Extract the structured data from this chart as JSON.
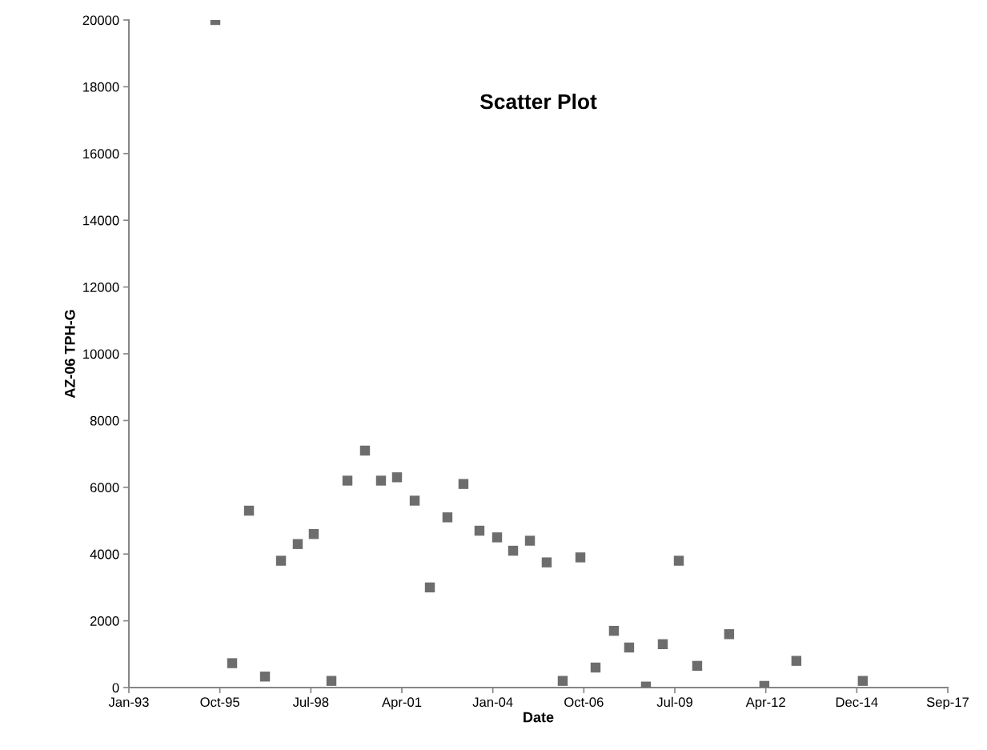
{
  "chart_data": {
    "type": "scatter",
    "title": "Scatter Plot",
    "xlabel": "Date",
    "ylabel": "AZ-06 TPH-G",
    "x": [
      "1995-09-08",
      "1996-03-11",
      "1996-09-12",
      "1997-03-07",
      "1997-08-30",
      "1998-03-02",
      "1998-08-25",
      "1999-03-07",
      "1999-08-30",
      "2000-03-10",
      "2000-09-02",
      "2001-02-25",
      "2001-09-07",
      "2002-02-21",
      "2002-09-02",
      "2003-02-25",
      "2003-08-20",
      "2004-03-01",
      "2004-08-24",
      "2005-02-25",
      "2005-08-28",
      "2006-02-20",
      "2006-09-02",
      "2007-02-16",
      "2007-09-06",
      "2008-02-20",
      "2008-08-23",
      "2009-02-24",
      "2009-08-19",
      "2010-03-09",
      "2011-02-23",
      "2012-03-16",
      "2013-03-03",
      "2015-03-03"
    ],
    "series": [
      {
        "color": "#6d6d6d",
        "values": [
          20000,
          730,
          5300,
          330,
          3800,
          4300,
          4600,
          200,
          6200,
          7100,
          6200,
          6300,
          5600,
          3000,
          5100,
          6100,
          4700,
          4500,
          4100,
          4400,
          3750,
          200,
          3900,
          600,
          1700,
          1200,
          30,
          1300,
          3800,
          650,
          1600,
          50,
          800,
          200
        ]
      }
    ],
    "marker": "square",
    "xlim": [
      "1993-01-31",
      "2017-09-22"
    ],
    "xticks": [
      {
        "value": "1993-01-31",
        "label": "Jan-93"
      },
      {
        "value": "1995-10-28",
        "label": "Oct-95"
      },
      {
        "value": "1998-07-24",
        "label": "Jul-98"
      },
      {
        "value": "2001-04-19",
        "label": "Apr-01"
      },
      {
        "value": "2004-01-14",
        "label": "Jan-04"
      },
      {
        "value": "2006-10-10",
        "label": "Oct-06"
      },
      {
        "value": "2009-07-06",
        "label": "Jul-09"
      },
      {
        "value": "2012-04-01",
        "label": "Apr-12"
      },
      {
        "value": "2014-12-27",
        "label": "Dec-14"
      },
      {
        "value": "2017-09-22",
        "label": "Sep-17"
      }
    ],
    "ylim": [
      0,
      20000
    ],
    "yticks": [
      0,
      2000,
      4000,
      6000,
      8000,
      10000,
      12000,
      14000,
      16000,
      18000,
      20000
    ],
    "grid": false,
    "legend": false
  }
}
